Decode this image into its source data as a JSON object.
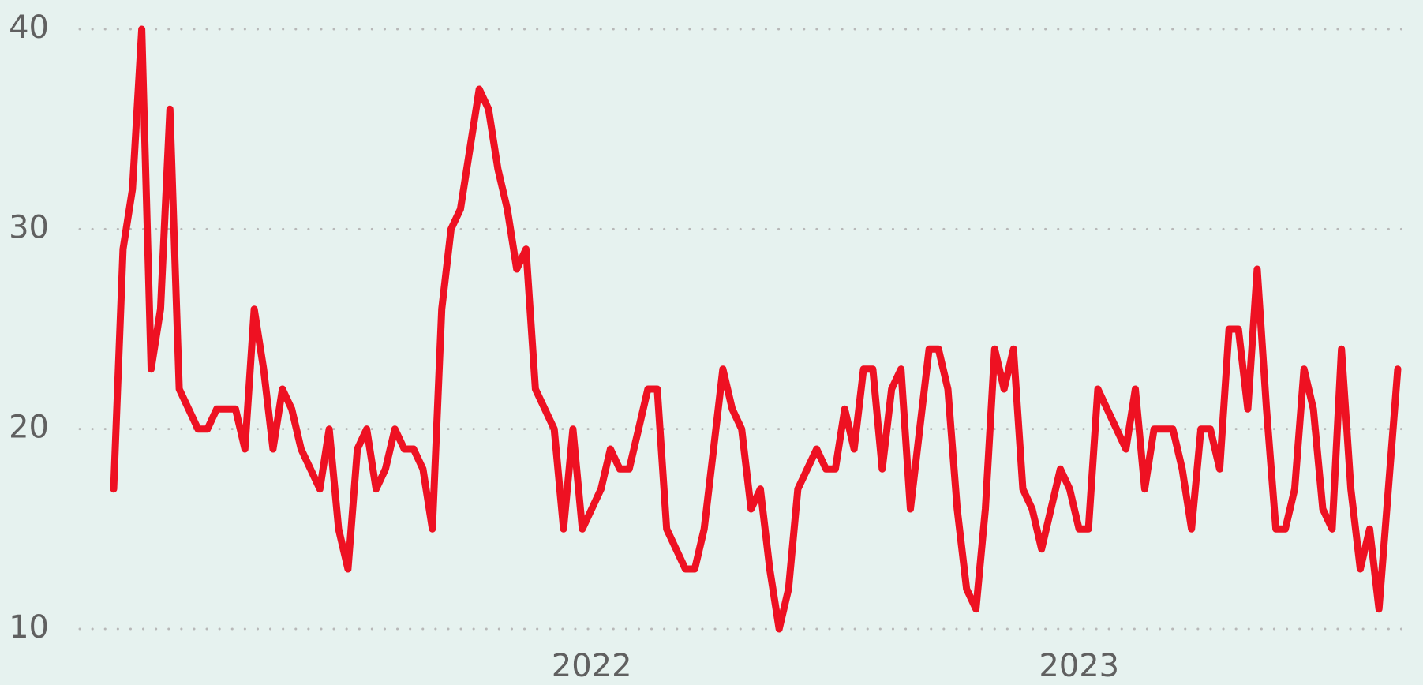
{
  "chart_data": {
    "type": "line",
    "categories": [
      null,
      null,
      null,
      null,
      null,
      null,
      null,
      null,
      null,
      null,
      null,
      null,
      null,
      null,
      null,
      null,
      null,
      null,
      null,
      null,
      null,
      null,
      null,
      null,
      null,
      null,
      null,
      null,
      null,
      null,
      null,
      null,
      null,
      null,
      null,
      null,
      null,
      null,
      null,
      null,
      null,
      null,
      null,
      null,
      null,
      null,
      null,
      null,
      null,
      null,
      null,
      "2022",
      null,
      null,
      null,
      null,
      null,
      null,
      null,
      null,
      null,
      null,
      null,
      null,
      null,
      null,
      null,
      null,
      null,
      null,
      null,
      null,
      null,
      null,
      null,
      null,
      null,
      null,
      null,
      null,
      null,
      null,
      null,
      null,
      null,
      null,
      null,
      null,
      null,
      null,
      null,
      null,
      null,
      null,
      null,
      null,
      null,
      null,
      null,
      null,
      null,
      null,
      null,
      "2023",
      null,
      null,
      null,
      null,
      null,
      null,
      null,
      null,
      null,
      null,
      null,
      null,
      null,
      null,
      null,
      null,
      null,
      null,
      null,
      null,
      null,
      null,
      null,
      null,
      null,
      null,
      null,
      null,
      null,
      null,
      null,
      null,
      null,
      null
    ],
    "series": [
      {
        "color": "#ee1122",
        "values": [
          17,
          29,
          32,
          40,
          23,
          26,
          36,
          22,
          21,
          20,
          20,
          21,
          21,
          21,
          19,
          26,
          23,
          19,
          22,
          21,
          19,
          18,
          17,
          20,
          15,
          13,
          19,
          20,
          17,
          18,
          20,
          19,
          19,
          18,
          15,
          26,
          30,
          31,
          34,
          37,
          36,
          33,
          31,
          28,
          29,
          22,
          21,
          20,
          15,
          20,
          15,
          16,
          17,
          19,
          18,
          18,
          20,
          22,
          22,
          15,
          14,
          13,
          13,
          15,
          19,
          23,
          21,
          20,
          16,
          17,
          13,
          10,
          12,
          17,
          18,
          19,
          18,
          18,
          21,
          19,
          23,
          23,
          18,
          22,
          23,
          16,
          20,
          24,
          24,
          22,
          16,
          12,
          11,
          16,
          24,
          22,
          24,
          17,
          16,
          14,
          16,
          18,
          17,
          15,
          15,
          22,
          21,
          20,
          19,
          22,
          17,
          20,
          20,
          20,
          18,
          15,
          20,
          20,
          18,
          25,
          25,
          21,
          28,
          21,
          15,
          15,
          17,
          23,
          21,
          16,
          15,
          24,
          17,
          13,
          15,
          11,
          17,
          23
        ]
      }
    ],
    "ylim": [
      10,
      40
    ],
    "yticks": [
      10,
      20,
      30,
      40
    ],
    "grid": true
  }
}
